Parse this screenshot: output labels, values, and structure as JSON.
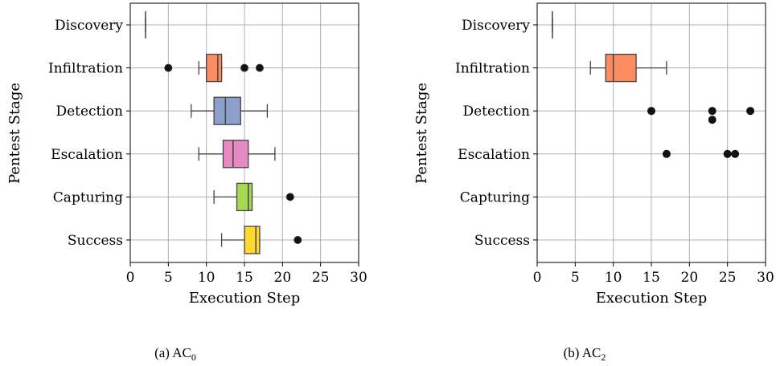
{
  "chart_data": [
    {
      "type": "box",
      "caption": "(a) AC",
      "caption_sub": "0",
      "xlabel": "Execution Step",
      "ylabel": "Pentest Stage",
      "xlim": [
        0,
        30
      ],
      "xticks": [
        0,
        5,
        10,
        15,
        20,
        25,
        30
      ],
      "grid": true,
      "categories": [
        "Discovery",
        "Infiltration",
        "Detection",
        "Escalation",
        "Capturing",
        "Success"
      ],
      "boxes": [
        {
          "stage": "Discovery",
          "color": "#66c2a5",
          "whisker_low": 2,
          "q1": 2,
          "median": 2,
          "q3": 2,
          "whisker_high": 2,
          "outliers": []
        },
        {
          "stage": "Infiltration",
          "color": "#fc8d62",
          "whisker_low": 9,
          "q1": 10,
          "median": 11.5,
          "q3": 12,
          "whisker_high": 12,
          "outliers": [
            5,
            15,
            17
          ]
        },
        {
          "stage": "Detection",
          "color": "#8da0cb",
          "whisker_low": 8,
          "q1": 11,
          "median": 12.5,
          "q3": 14.5,
          "whisker_high": 18,
          "outliers": []
        },
        {
          "stage": "Escalation",
          "color": "#e78ac3",
          "whisker_low": 9,
          "q1": 12.2,
          "median": 13.5,
          "q3": 15.5,
          "whisker_high": 19,
          "outliers": []
        },
        {
          "stage": "Capturing",
          "color": "#a6d854",
          "whisker_low": 11,
          "q1": 14,
          "median": 15.5,
          "q3": 16,
          "whisker_high": 16,
          "outliers": [
            21
          ]
        },
        {
          "stage": "Success",
          "color": "#ffd92f",
          "whisker_low": 12,
          "q1": 15,
          "median": 16.5,
          "q3": 17,
          "whisker_high": 17,
          "outliers": [
            22
          ]
        }
      ]
    },
    {
      "type": "box",
      "caption": "(b) AC",
      "caption_sub": "2",
      "xlabel": "Execution Step",
      "ylabel": "Pentest Stage",
      "xlim": [
        0,
        30
      ],
      "xticks": [
        0,
        5,
        10,
        15,
        20,
        25,
        30
      ],
      "grid": true,
      "categories": [
        "Discovery",
        "Infiltration",
        "Detection",
        "Escalation",
        "Capturing",
        "Success"
      ],
      "boxes": [
        {
          "stage": "Discovery",
          "color": "#66c2a5",
          "whisker_low": 2,
          "q1": 2,
          "median": 2,
          "q3": 2,
          "whisker_high": 2,
          "outliers": []
        },
        {
          "stage": "Infiltration",
          "color": "#fc8d62",
          "whisker_low": 7,
          "q1": 9,
          "median": 10,
          "q3": 13,
          "whisker_high": 17,
          "outliers": []
        }
      ],
      "points": [
        {
          "stage": "Detection",
          "values": [
            15,
            23,
            23,
            28
          ]
        },
        {
          "stage": "Escalation",
          "values": [
            17,
            25,
            26
          ]
        }
      ]
    }
  ]
}
